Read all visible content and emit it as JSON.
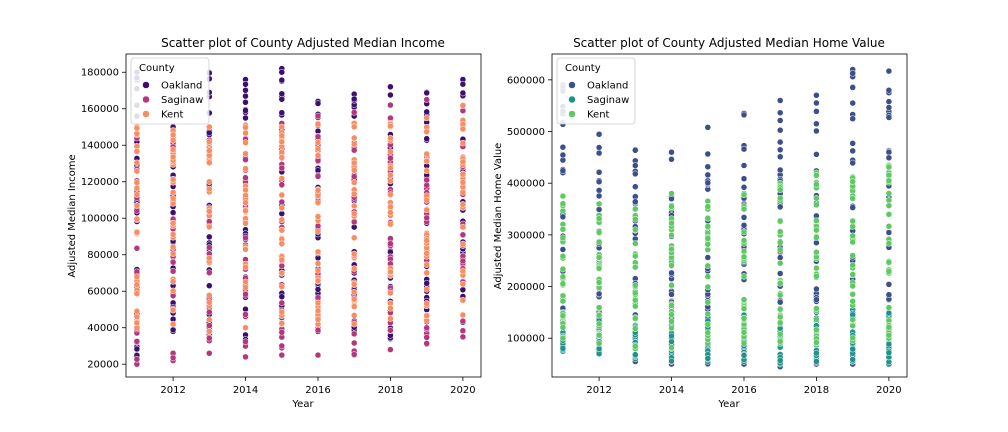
{
  "chart_data": [
    {
      "type": "scatter",
      "title": "Scatter plot of County Adjusted Median Income",
      "xlabel": "Year",
      "ylabel": "Adjusted Median Income",
      "xlim": [
        2010.7,
        2020.5
      ],
      "ylim": [
        13000,
        190000
      ],
      "x_ticks": [
        2012,
        2014,
        2016,
        2018,
        2020
      ],
      "y_ticks": [
        20000,
        40000,
        60000,
        80000,
        100000,
        120000,
        140000,
        160000,
        180000
      ],
      "legend": {
        "title": "County",
        "placement": "top-left"
      },
      "x": [
        2011,
        2012,
        2013,
        2014,
        2015,
        2016,
        2017,
        2018,
        2019,
        2020
      ],
      "series": [
        {
          "name": "Oakland",
          "color": "#3b0f70",
          "ranges": [
            [
              24000,
              180000
            ],
            [
              38000,
              150000
            ],
            [
              36000,
              180000
            ],
            [
              33000,
              176000
            ],
            [
              39000,
              182000
            ],
            [
              38000,
              164000
            ],
            [
              38000,
              168000
            ],
            [
              34000,
              172000
            ],
            [
              39000,
              169000
            ],
            [
              43000,
              176000
            ]
          ]
        },
        {
          "name": "Saginaw",
          "color": "#b5367a",
          "ranges": [
            [
              20000,
              150000
            ],
            [
              22000,
              148000
            ],
            [
              26000,
              150000
            ],
            [
              24000,
              151000
            ],
            [
              25000,
              152000
            ],
            [
              25000,
              156000
            ],
            [
              25000,
              158000
            ],
            [
              28000,
              162000
            ],
            [
              31000,
              165000
            ],
            [
              35000,
              162000
            ]
          ]
        },
        {
          "name": "Kent",
          "color": "#f98c60",
          "ranges": [
            [
              40000,
              150000
            ],
            [
              42000,
              148000
            ],
            [
              38000,
              150000
            ],
            [
              40000,
              151000
            ],
            [
              42000,
              150000
            ],
            [
              42000,
              152000
            ],
            [
              42000,
              152000
            ],
            [
              45000,
              152000
            ],
            [
              44000,
              155000
            ],
            [
              47000,
              162000
            ]
          ]
        }
      ]
    },
    {
      "type": "scatter",
      "title": "Scatter plot of County Adjusted Median Home Value",
      "xlabel": "Year",
      "ylabel": "Adjusted Median Home Value",
      "xlim": [
        2010.7,
        2020.5
      ],
      "ylim": [
        25000,
        650000
      ],
      "x_ticks": [
        2012,
        2014,
        2016,
        2018,
        2020
      ],
      "y_ticks": [
        100000,
        200000,
        300000,
        400000,
        500000,
        600000
      ],
      "legend": {
        "title": "County",
        "placement": "top-left"
      },
      "x": [
        2011,
        2012,
        2013,
        2014,
        2015,
        2016,
        2017,
        2018,
        2019,
        2020
      ],
      "series": [
        {
          "name": "Oakland",
          "color": "#3b4f8a",
          "ranges": [
            [
              75000,
              590000
            ],
            [
              70000,
              495000
            ],
            [
              55000,
              465000
            ],
            [
              50000,
              460000
            ],
            [
              50000,
              508000
            ],
            [
              50000,
              535000
            ],
            [
              45000,
              560000
            ],
            [
              50000,
              570000
            ],
            [
              50000,
              620000
            ],
            [
              50000,
              617000
            ]
          ]
        },
        {
          "name": "Saginaw",
          "color": "#21918c",
          "ranges": [
            [
              75000,
              150000
            ],
            [
              70000,
              145000
            ],
            [
              60000,
              140000
            ],
            [
              55000,
              140000
            ],
            [
              55000,
              140000
            ],
            [
              55000,
              145000
            ],
            [
              50000,
              145000
            ],
            [
              55000,
              150000
            ],
            [
              55000,
              155000
            ],
            [
              50000,
              150000
            ]
          ]
        },
        {
          "name": "Kent",
          "color": "#5ec962",
          "ranges": [
            [
              100000,
              375000
            ],
            [
              90000,
              360000
            ],
            [
              80000,
              350000
            ],
            [
              80000,
              380000
            ],
            [
              90000,
              365000
            ],
            [
              90000,
              380000
            ],
            [
              90000,
              400000
            ],
            [
              90000,
              420000
            ],
            [
              95000,
              410000
            ],
            [
              100000,
              435000
            ]
          ]
        }
      ]
    }
  ]
}
